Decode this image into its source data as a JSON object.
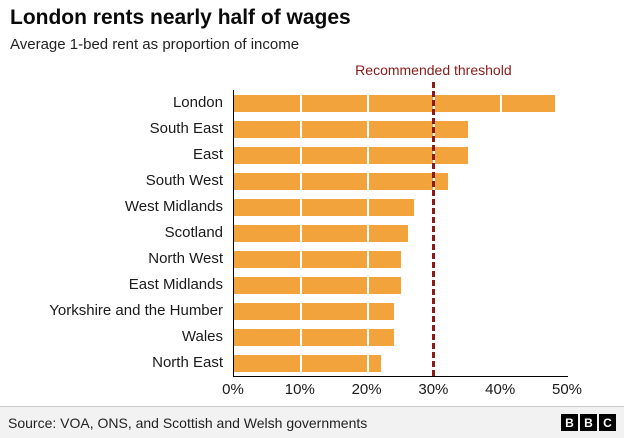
{
  "chart_data": {
    "type": "bar",
    "orientation": "horizontal",
    "title": "London rents nearly half of wages",
    "subtitle": "Average 1-bed rent as proportion of income",
    "categories": [
      "London",
      "South East",
      "East",
      "South West",
      "West Midlands",
      "Scotland",
      "North West",
      "East Midlands",
      "Yorkshire and the Humber",
      "Wales",
      "North East"
    ],
    "values": [
      48,
      35,
      35,
      32,
      27,
      26,
      25,
      25,
      24,
      24,
      22
    ],
    "xlabel": "",
    "ylabel": "",
    "xlim": [
      0,
      50
    ],
    "x_ticks": [
      "0%",
      "10%",
      "20%",
      "30%",
      "40%",
      "50%"
    ],
    "x_tick_values": [
      0,
      10,
      20,
      30,
      40,
      50
    ],
    "gridline_values": [
      10,
      20,
      30,
      40
    ],
    "annotation": {
      "label": "Recommended threshold",
      "value": 30
    },
    "bar_color": "#f2a33c",
    "threshold_color": "#8b1a1a",
    "legend": "none",
    "grid": "white-overlay"
  },
  "footer": {
    "source": "Source: VOA, ONS, and Scottish and Welsh governments",
    "logo_letters": [
      "B",
      "B",
      "C"
    ]
  }
}
